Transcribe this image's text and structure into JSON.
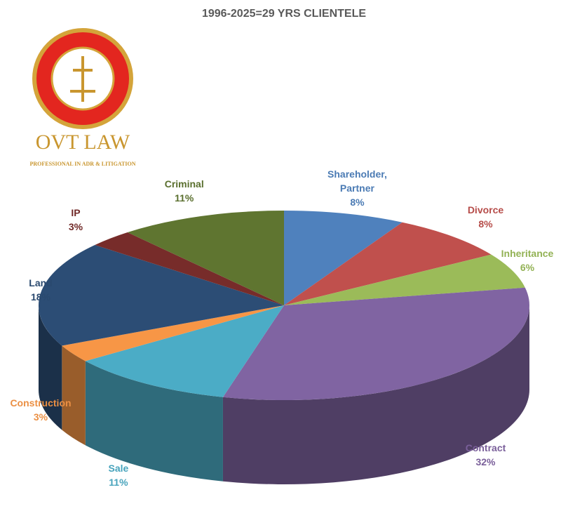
{
  "chart_data": {
    "type": "pie3d",
    "title": "1996-2025=29 YRS CLIENTELE",
    "categories": [
      "Shareholder, Partner",
      "Divorce",
      "Inheritance",
      "Contract",
      "Sale",
      "Construction",
      "Land",
      "IP",
      "Criminal"
    ],
    "values": [
      8,
      8,
      6,
      32,
      11,
      3,
      18,
      3,
      11
    ],
    "value_labels": [
      "8%",
      "8%",
      "6%",
      "32%",
      "11%",
      "3%",
      "18%",
      "3%",
      "11%"
    ],
    "colors": [
      "#4f81bd",
      "#c0504d",
      "#9bbb59",
      "#8064a2",
      "#4bacc6",
      "#f79646",
      "#2c4d75",
      "#772c2a",
      "#5f7530"
    ]
  },
  "logo": {
    "name": "OVT LAW",
    "tagline": "PROFESSIONAL IN ADR & LITIGATION"
  }
}
